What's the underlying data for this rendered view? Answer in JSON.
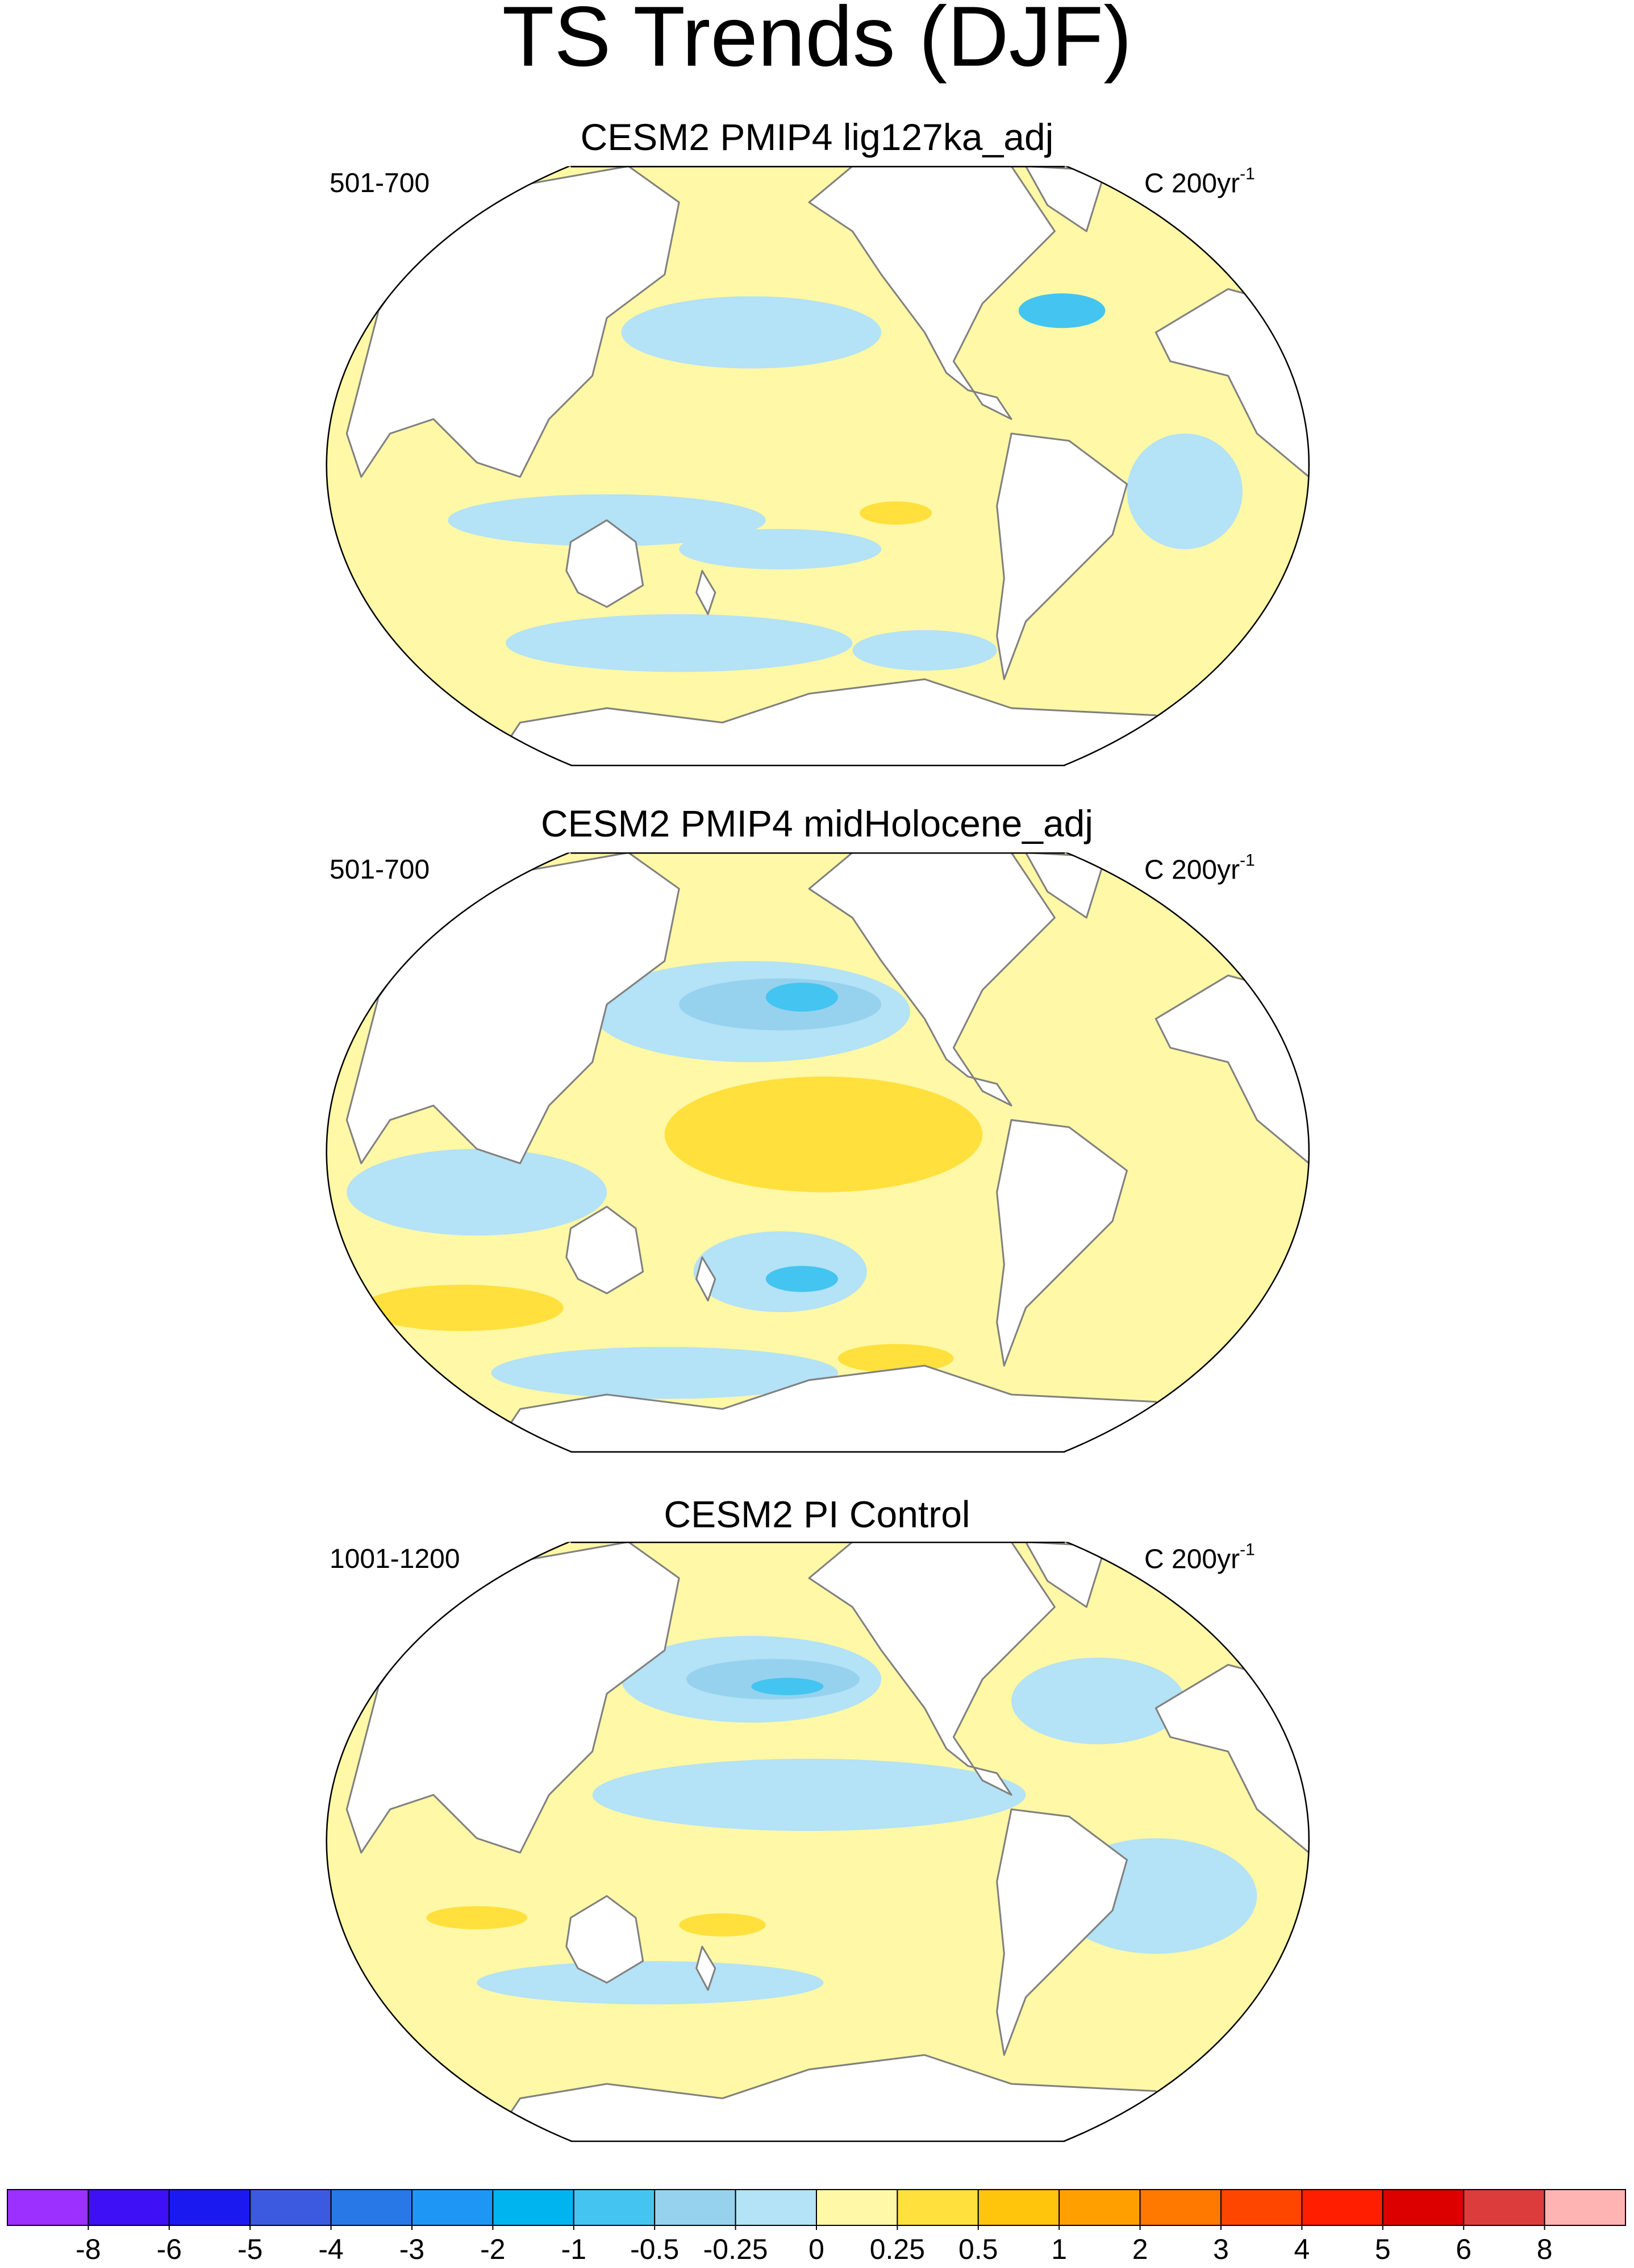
{
  "title": "TS Trends (DJF)",
  "panels": [
    {
      "title": "CESM2 PMIP4 lig127ka_adj",
      "left": "501-700",
      "right": {
        "text": "C 200yr",
        "superscript": "-1"
      }
    },
    {
      "title": "CESM2 PMIP4 midHolocene_adj",
      "left": "501-700",
      "right": {
        "text": "C 200yr",
        "superscript": "-1"
      }
    },
    {
      "title": "CESM2 PI Control",
      "left": "1001-1200",
      "right": {
        "text": "C 200yr",
        "superscript": "-1"
      }
    }
  ],
  "colorbar": {
    "levels": [
      -8,
      -6,
      -5,
      -4,
      -3,
      -2,
      -1,
      -0.5,
      -0.25,
      0,
      0.25,
      0.5,
      1,
      2,
      3,
      4,
      5,
      6,
      8
    ],
    "colors": [
      "#9b30ff",
      "#3e10f5",
      "#1a1af0",
      "#3c5ae0",
      "#2878e8",
      "#1e96f5",
      "#00b4f0",
      "#44c4f0",
      "#96d2ee",
      "#b4e2f6",
      "#fff8a6",
      "#ffe03c",
      "#ffc40c",
      "#ffa000",
      "#ff7800",
      "#ff4600",
      "#ff1e00",
      "#dc0000",
      "#dc3c3c",
      "#ffb4b4"
    ]
  }
}
